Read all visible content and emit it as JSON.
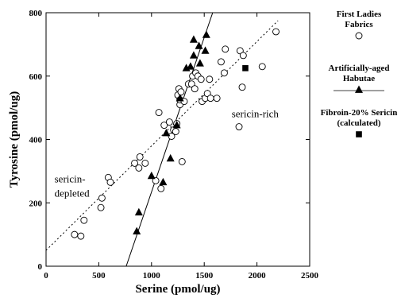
{
  "chart_data": {
    "type": "scatter",
    "xlabel": "Serine (pmol/ug)",
    "ylabel": "Tyrosine (pmol/ug)",
    "xlim": [
      0,
      2500
    ],
    "ylim": [
      0,
      800
    ],
    "xticks": [
      0,
      500,
      1000,
      1500,
      2000,
      2500
    ],
    "yticks": [
      0,
      200,
      400,
      600,
      800
    ],
    "grid": false,
    "legend_position": "right",
    "annotations": [
      {
        "text": "sericin-rich"
      },
      {
        "text": "sericin-"
      },
      {
        "text": "depleted"
      }
    ],
    "series": [
      {
        "name": "First Ladies Fabrics",
        "marker": "open-circle",
        "points": [
          [
            270,
            100
          ],
          [
            330,
            95
          ],
          [
            360,
            145
          ],
          [
            520,
            185
          ],
          [
            530,
            215
          ],
          [
            590,
            280
          ],
          [
            610,
            265
          ],
          [
            840,
            325
          ],
          [
            880,
            310
          ],
          [
            890,
            345
          ],
          [
            940,
            325
          ],
          [
            1040,
            270
          ],
          [
            1070,
            485
          ],
          [
            1090,
            245
          ],
          [
            1120,
            445
          ],
          [
            1170,
            455
          ],
          [
            1190,
            410
          ],
          [
            1210,
            430
          ],
          [
            1230,
            425
          ],
          [
            1240,
            450
          ],
          [
            1250,
            540
          ],
          [
            1260,
            560
          ],
          [
            1270,
            510
          ],
          [
            1270,
            525
          ],
          [
            1280,
            550
          ],
          [
            1290,
            330
          ],
          [
            1310,
            520
          ],
          [
            1350,
            575
          ],
          [
            1380,
            575
          ],
          [
            1390,
            600
          ],
          [
            1410,
            560
          ],
          [
            1420,
            610
          ],
          [
            1440,
            600
          ],
          [
            1470,
            590
          ],
          [
            1480,
            520
          ],
          [
            1510,
            530
          ],
          [
            1530,
            545
          ],
          [
            1550,
            590
          ],
          [
            1560,
            530
          ],
          [
            1620,
            530
          ],
          [
            1660,
            645
          ],
          [
            1690,
            610
          ],
          [
            1700,
            685
          ],
          [
            1830,
            440
          ],
          [
            1840,
            680
          ],
          [
            1860,
            565
          ],
          [
            1870,
            665
          ],
          [
            2050,
            630
          ],
          [
            2180,
            740
          ]
        ]
      },
      {
        "name": "Artificially-aged Habutae",
        "marker": "filled-triangle",
        "points": [
          [
            860,
            110
          ],
          [
            880,
            170
          ],
          [
            1000,
            285
          ],
          [
            1110,
            265
          ],
          [
            1140,
            420
          ],
          [
            1180,
            340
          ],
          [
            1240,
            445
          ],
          [
            1270,
            530
          ],
          [
            1330,
            625
          ],
          [
            1370,
            630
          ],
          [
            1400,
            665
          ],
          [
            1400,
            715
          ],
          [
            1450,
            695
          ],
          [
            1460,
            640
          ],
          [
            1510,
            680
          ],
          [
            1520,
            730
          ]
        ]
      },
      {
        "name": "Fibroin-20% Sericin (calculated)",
        "marker": "filled-square",
        "points": [
          [
            1890,
            625
          ]
        ]
      }
    ],
    "fit_lines": [
      {
        "series": "First Ladies Fabrics",
        "style": "dotted",
        "from": [
          0,
          50
        ],
        "to": [
          2200,
          775
        ]
      },
      {
        "series": "Artificially-aged Habutae",
        "style": "solid",
        "from": [
          760,
          0
        ],
        "to": [
          1580,
          800
        ]
      }
    ]
  },
  "legend": [
    {
      "lines": [
        "First Ladies",
        "Fabrics"
      ],
      "marker": "open-circle"
    },
    {
      "lines": [
        "Artificially-aged",
        "Habutae"
      ],
      "marker": "filled-triangle"
    },
    {
      "lines": [
        "Fibroin-20% Sericin",
        "(calculated)"
      ],
      "marker": "filled-square"
    }
  ],
  "colors": {
    "ink": "#000000",
    "background": "#ffffff"
  }
}
